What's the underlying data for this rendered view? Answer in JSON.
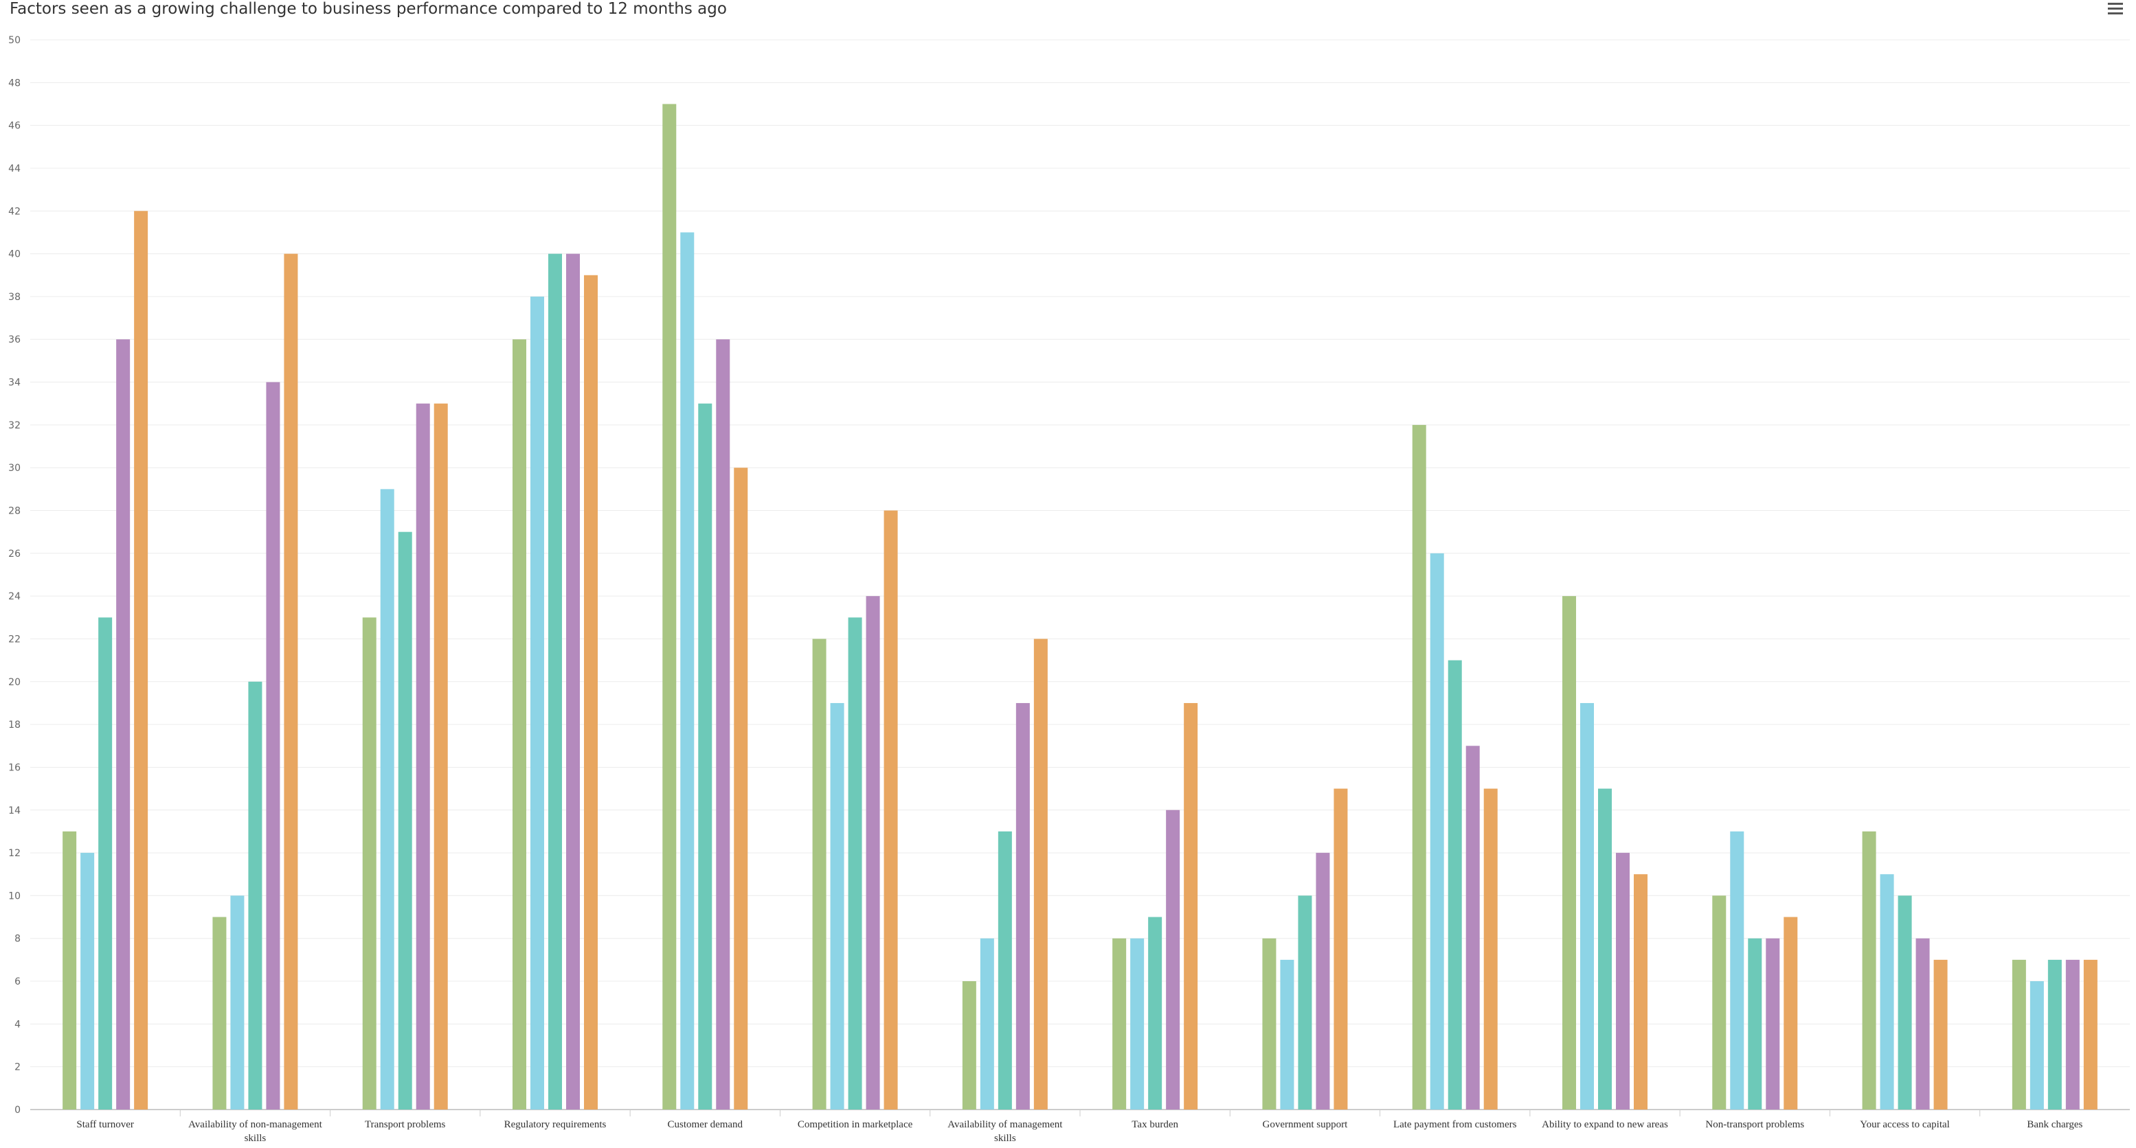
{
  "header": {
    "menu_icon": "hamburger-menu-icon"
  },
  "chart_data": {
    "type": "bar",
    "title": "Factors seen as a growing challenge to business performance compared to 12 months ago",
    "xlabel": "",
    "ylabel": "",
    "ylim": [
      0,
      50
    ],
    "y_tick_step": 2,
    "grid": true,
    "legend": "none",
    "categories": [
      "Staff turnover",
      "Availability of non-management skills",
      "Transport problems",
      "Regulatory requirements",
      "Customer demand",
      "Competition in marketplace",
      "Availability of management skills",
      "Tax burden",
      "Government support",
      "Late payment from customers",
      "Ability to expand to new areas",
      "Non-transport problems",
      "Your access to capital",
      "Bank charges"
    ],
    "series": [
      {
        "color": "#a8c583",
        "values": [
          13,
          9,
          23,
          36,
          47,
          22,
          6,
          8,
          8,
          32,
          24,
          10,
          13,
          7
        ]
      },
      {
        "color": "#8dd4e6",
        "values": [
          12,
          10,
          29,
          38,
          41,
          19,
          8,
          8,
          7,
          26,
          19,
          13,
          11,
          6
        ]
      },
      {
        "color": "#6dc9b8",
        "values": [
          23,
          20,
          27,
          40,
          33,
          23,
          13,
          9,
          10,
          21,
          15,
          8,
          10,
          7
        ]
      },
      {
        "color": "#b48abd",
        "values": [
          36,
          34,
          33,
          40,
          36,
          24,
          19,
          14,
          12,
          17,
          12,
          8,
          8,
          7
        ]
      },
      {
        "color": "#e8a660",
        "values": [
          42,
          40,
          33,
          39,
          30,
          28,
          22,
          19,
          15,
          15,
          11,
          9,
          7,
          7
        ]
      }
    ]
  }
}
